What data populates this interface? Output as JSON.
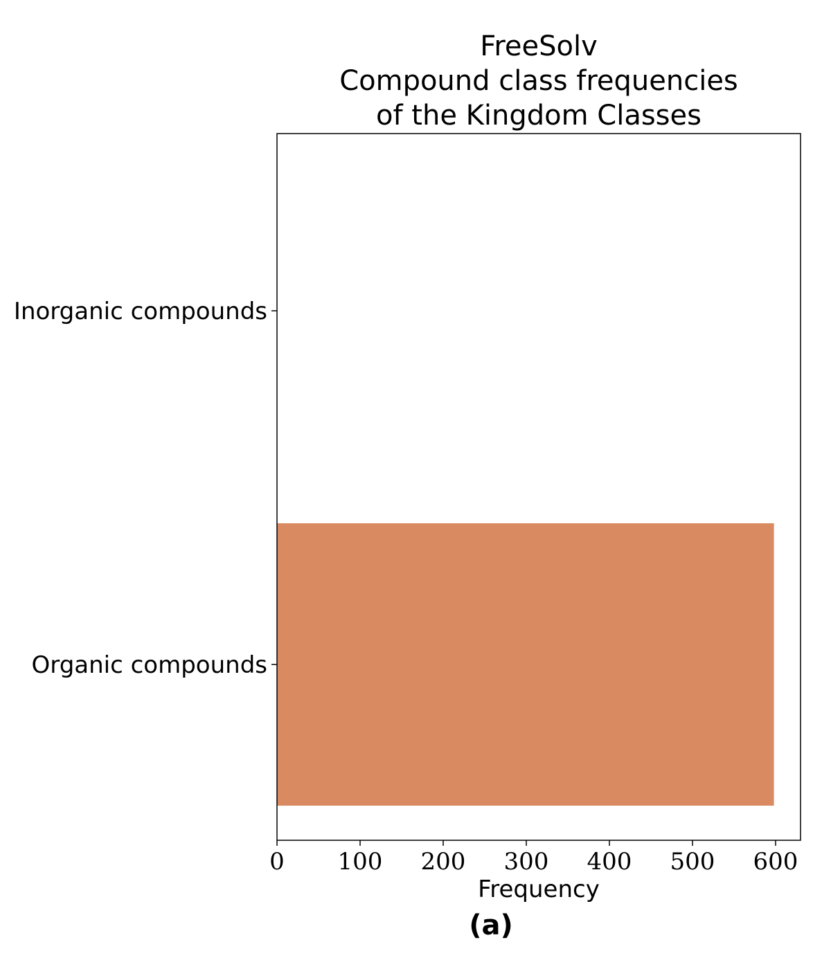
{
  "chart_data": {
    "type": "bar",
    "orientation": "horizontal",
    "title_lines": [
      "FreeSolv",
      "Compound class frequencies",
      "of the Kingdom Classes"
    ],
    "categories": [
      "Inorganic compounds",
      "Organic compounds"
    ],
    "values": [
      0,
      598
    ],
    "xlabel": "Frequency",
    "ylabel": "",
    "xlim": [
      0,
      630
    ],
    "xticks": [
      0,
      100,
      200,
      300,
      400,
      500,
      600
    ],
    "grid": false,
    "bar_color": "#d98a60"
  },
  "panel_label": "(a)"
}
